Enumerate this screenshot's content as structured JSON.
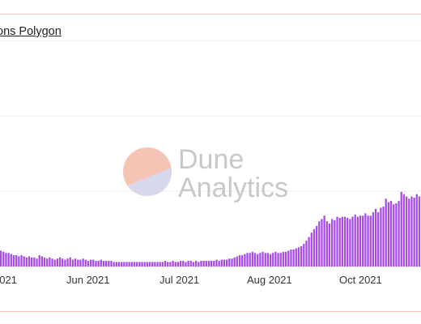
{
  "title": "ons Polygon",
  "watermark": {
    "line1": "Dune",
    "line2": "Analytics"
  },
  "colors": {
    "bar": "#a64be6",
    "grid": "#ececec",
    "frame": "#f3c2b4",
    "watermark_top": "#f6c4b4",
    "watermark_bottom": "#d8d8ec"
  },
  "chart_data": {
    "type": "bar",
    "title": "ons Polygon",
    "xlabel": "",
    "ylabel": "",
    "grid": true,
    "x_ticks": [
      "2021",
      "Jun 2021",
      "Jul 2021",
      "Aug 2021",
      "Oct 2021"
    ],
    "ylim": [
      0,
      1
    ],
    "values": [
      0.07,
      0.065,
      0.06,
      0.06,
      0.055,
      0.05,
      0.05,
      0.045,
      0.05,
      0.045,
      0.04,
      0.045,
      0.04,
      0.04,
      0.035,
      0.05,
      0.045,
      0.04,
      0.035,
      0.04,
      0.035,
      0.03,
      0.035,
      0.04,
      0.035,
      0.03,
      0.035,
      0.04,
      0.03,
      0.035,
      0.03,
      0.03,
      0.035,
      0.03,
      0.025,
      0.03,
      0.03,
      0.025,
      0.025,
      0.03,
      0.025,
      0.025,
      0.025,
      0.025,
      0.02,
      0.02,
      0.02,
      0.02,
      0.02,
      0.02,
      0.02,
      0.02,
      0.02,
      0.02,
      0.02,
      0.02,
      0.02,
      0.02,
      0.02,
      0.02,
      0.02,
      0.02,
      0.02,
      0.02,
      0.025,
      0.02,
      0.02,
      0.025,
      0.02,
      0.02,
      0.025,
      0.025,
      0.02,
      0.025,
      0.025,
      0.02,
      0.025,
      0.02,
      0.025,
      0.025,
      0.025,
      0.025,
      0.025,
      0.025,
      0.03,
      0.025,
      0.03,
      0.03,
      0.03,
      0.035,
      0.035,
      0.04,
      0.045,
      0.05,
      0.05,
      0.055,
      0.06,
      0.06,
      0.065,
      0.06,
      0.055,
      0.06,
      0.065,
      0.06,
      0.06,
      0.055,
      0.06,
      0.065,
      0.06,
      0.06,
      0.065,
      0.065,
      0.07,
      0.075,
      0.075,
      0.08,
      0.085,
      0.09,
      0.1,
      0.115,
      0.13,
      0.15,
      0.165,
      0.18,
      0.2,
      0.21,
      0.225,
      0.2,
      0.19,
      0.21,
      0.205,
      0.22,
      0.215,
      0.22,
      0.22,
      0.215,
      0.21,
      0.22,
      0.23,
      0.22,
      0.225,
      0.225,
      0.235,
      0.225,
      0.225,
      0.24,
      0.255,
      0.24,
      0.26,
      0.265,
      0.3,
      0.285,
      0.29,
      0.275,
      0.28,
      0.29,
      0.33,
      0.32,
      0.31,
      0.3,
      0.31,
      0.305,
      0.32,
      0.31
    ]
  }
}
